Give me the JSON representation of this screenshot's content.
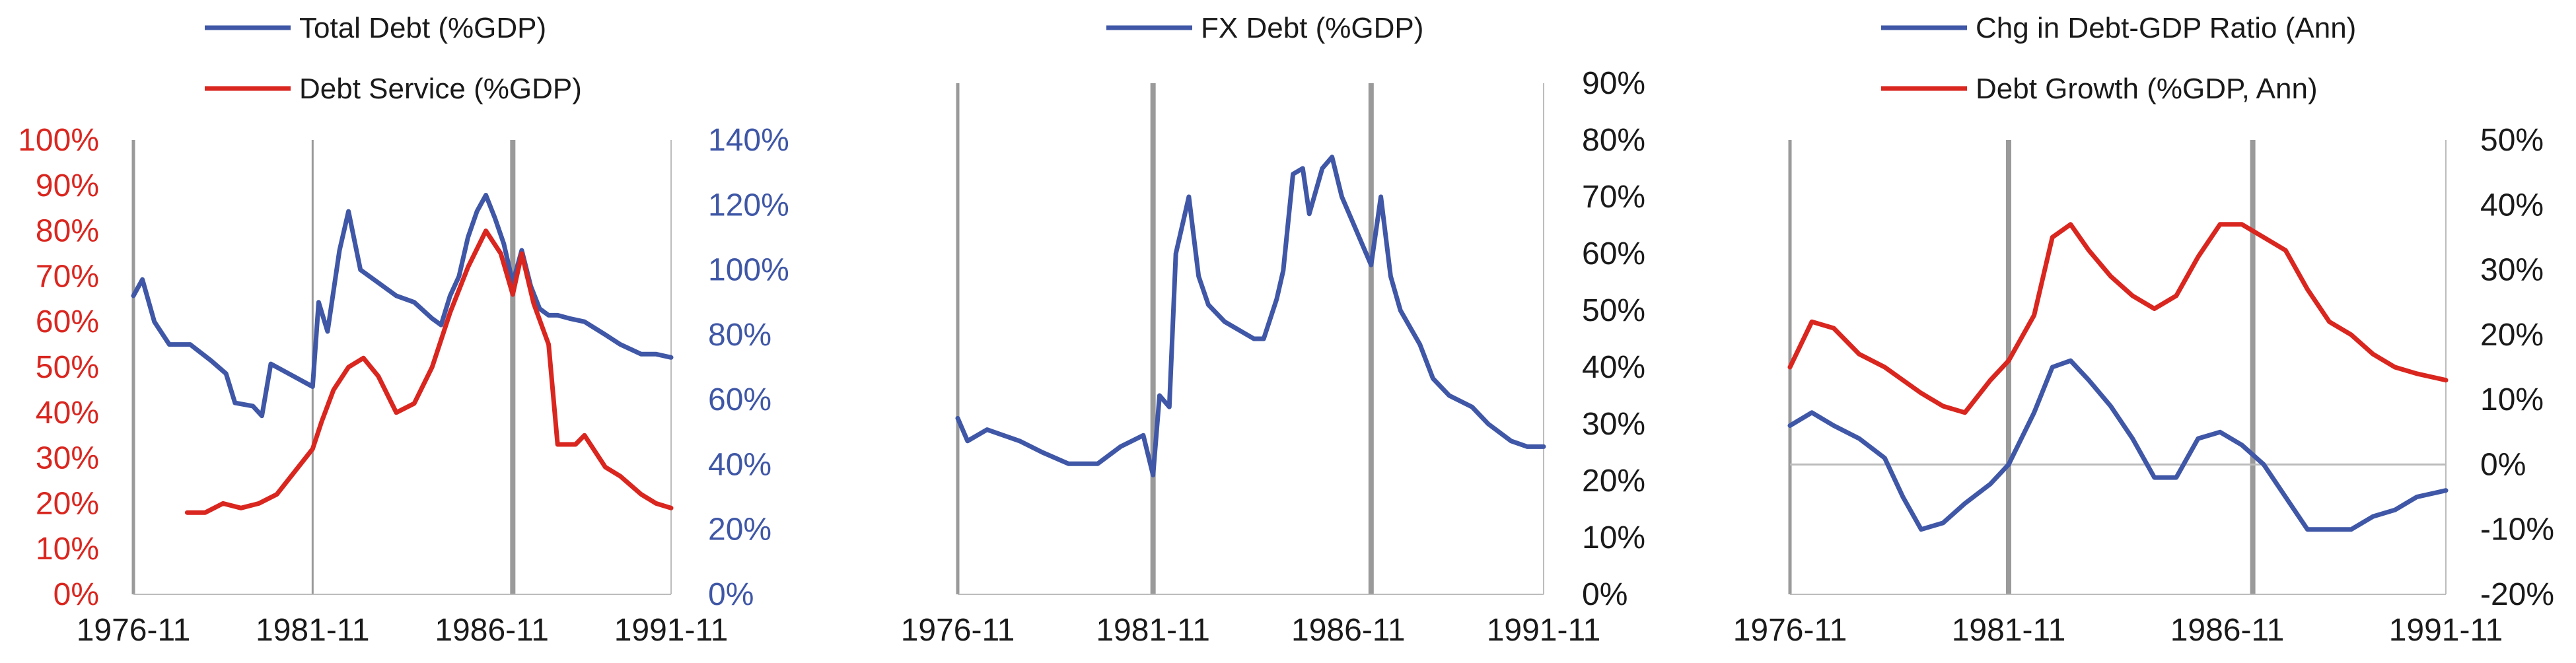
{
  "colors": {
    "blue": "#3f57a6",
    "red": "#d9261f",
    "axis": "#9a9a9a",
    "text": "#1a1a1a"
  },
  "chart_data": [
    {
      "type": "line",
      "legend": [
        "Total Debt (%GDP)",
        "Debt Service (%GDP)"
      ],
      "x_ticks": [
        "1976-11",
        "1981-11",
        "1986-11",
        "1991-11"
      ],
      "xlim": [
        "1976-11",
        "1991-11"
      ],
      "y_left": {
        "ticks": [
          "0%",
          "10%",
          "20%",
          "30%",
          "40%",
          "50%",
          "60%",
          "70%",
          "80%",
          "90%",
          "100%"
        ],
        "lim": [
          0,
          100
        ],
        "color": "red"
      },
      "y_right": {
        "ticks": [
          "0%",
          "20%",
          "40%",
          "60%",
          "80%",
          "100%",
          "120%",
          "140%"
        ],
        "lim": [
          0,
          140
        ],
        "color": "blue"
      },
      "vlines": [
        "1981-11",
        "1987-06"
      ],
      "series": [
        {
          "name": "Total Debt (%GDP)",
          "axis": "right",
          "color": "blue",
          "x": [
            "1976-11",
            "1977-02",
            "1977-06",
            "1977-11",
            "1978-06",
            "1979-01",
            "1979-06",
            "1979-09",
            "1980-03",
            "1980-06",
            "1980-09",
            "1981-03",
            "1981-11",
            "1982-01",
            "1982-04",
            "1982-08",
            "1982-11",
            "1983-03",
            "1983-09",
            "1984-03",
            "1984-09",
            "1985-03",
            "1985-06",
            "1985-09",
            "1985-12",
            "1986-03",
            "1986-06",
            "1986-09",
            "1986-12",
            "1987-03",
            "1987-06",
            "1987-09",
            "1987-12",
            "1988-03",
            "1988-06",
            "1988-09",
            "1989-01",
            "1989-06",
            "1990-01",
            "1990-06",
            "1991-01",
            "1991-06",
            "1991-11"
          ],
          "values": [
            92,
            97,
            84,
            77,
            77,
            72,
            68,
            59,
            58,
            55,
            71,
            68,
            64,
            90,
            81,
            106,
            118,
            100,
            96,
            92,
            90,
            85,
            83,
            92,
            98,
            110,
            118,
            123,
            116,
            108,
            96,
            106,
            95,
            88,
            86,
            86,
            85,
            84,
            80,
            77,
            74,
            74,
            73
          ]
        },
        {
          "name": "Debt Service (%GDP)",
          "axis": "left",
          "color": "red",
          "x": [
            "1978-05",
            "1978-11",
            "1979-05",
            "1979-11",
            "1980-05",
            "1980-11",
            "1981-05",
            "1981-11",
            "1982-02",
            "1982-06",
            "1982-11",
            "1983-04",
            "1983-09",
            "1984-03",
            "1984-09",
            "1985-03",
            "1985-09",
            "1986-03",
            "1986-09",
            "1987-02",
            "1987-06",
            "1987-09",
            "1988-01",
            "1988-06",
            "1988-09",
            "1989-03",
            "1989-06",
            "1990-01",
            "1990-06",
            "1991-01",
            "1991-06",
            "1991-11"
          ],
          "values": [
            18,
            18,
            20,
            19,
            20,
            22,
            27,
            32,
            38,
            45,
            50,
            52,
            48,
            40,
            42,
            50,
            62,
            72,
            80,
            75,
            66,
            75,
            64,
            55,
            33,
            33,
            35,
            28,
            26,
            22,
            20,
            19
          ]
        }
      ]
    },
    {
      "type": "line",
      "legend": [
        "FX Debt (%GDP)"
      ],
      "x_ticks": [
        "1976-11",
        "1981-11",
        "1986-11",
        "1991-11"
      ],
      "xlim": [
        "1976-11",
        "1991-11"
      ],
      "y_right": {
        "ticks": [
          "0%",
          "10%",
          "20%",
          "30%",
          "40%",
          "50%",
          "60%",
          "70%",
          "80%",
          "90%"
        ],
        "lim": [
          0,
          90
        ],
        "color": "blue"
      },
      "vlines": [
        "1981-11",
        "1987-06"
      ],
      "series": [
        {
          "name": "FX Debt (%GDP)",
          "axis": "right",
          "color": "blue",
          "x": [
            "1976-11",
            "1977-02",
            "1977-08",
            "1978-06",
            "1979-01",
            "1979-09",
            "1980-06",
            "1981-01",
            "1981-08",
            "1981-11",
            "1982-01",
            "1982-04",
            "1982-06",
            "1982-10",
            "1983-01",
            "1983-04",
            "1983-09",
            "1984-03",
            "1984-06",
            "1984-09",
            "1985-01",
            "1985-03",
            "1985-06",
            "1985-09",
            "1985-11",
            "1986-03",
            "1986-06",
            "1986-09",
            "1986-12",
            "1987-03",
            "1987-06",
            "1987-09",
            "1987-12",
            "1988-03",
            "1988-09",
            "1989-01",
            "1989-06",
            "1990-01",
            "1990-06",
            "1991-01",
            "1991-06",
            "1991-11"
          ],
          "values": [
            31,
            27,
            29,
            27,
            25,
            23,
            23,
            26,
            28,
            21,
            35,
            33,
            60,
            70,
            56,
            51,
            48,
            46,
            45,
            45,
            52,
            57,
            74,
            75,
            67,
            75,
            77,
            70,
            66,
            62,
            58,
            70,
            56,
            50,
            44,
            38,
            35,
            33,
            30,
            27,
            26,
            26
          ]
        }
      ]
    },
    {
      "type": "line",
      "legend": [
        "Chg in Debt-GDP Ratio (Ann)",
        "Debt Growth (%GDP, Ann)"
      ],
      "x_ticks": [
        "1976-11",
        "1981-11",
        "1986-11",
        "1991-11"
      ],
      "xlim": [
        "1976-11",
        "1991-11"
      ],
      "y_right": {
        "ticks": [
          "-20%",
          "-10%",
          "0%",
          "10%",
          "20%",
          "30%",
          "40%",
          "50%"
        ],
        "lim": [
          -20,
          50
        ],
        "color": "blue"
      },
      "vlines": [
        "1981-11",
        "1987-06"
      ],
      "hline": 0,
      "series": [
        {
          "name": "Chg in Debt-GDP Ratio (Ann)",
          "axis": "right",
          "color": "blue",
          "x": [
            "1976-11",
            "1977-05",
            "1977-11",
            "1978-06",
            "1979-01",
            "1979-06",
            "1979-11",
            "1980-05",
            "1980-11",
            "1981-06",
            "1981-11",
            "1982-06",
            "1982-11",
            "1983-04",
            "1983-09",
            "1984-03",
            "1984-09",
            "1985-03",
            "1985-09",
            "1986-03",
            "1986-09",
            "1987-03",
            "1987-09",
            "1988-03",
            "1988-09",
            "1989-03",
            "1989-09",
            "1990-03",
            "1990-09",
            "1991-03",
            "1991-11"
          ],
          "values": [
            6,
            8,
            6,
            4,
            1,
            -5,
            -10,
            -9,
            -6,
            -3,
            0,
            8,
            15,
            16,
            13,
            9,
            4,
            -2,
            -2,
            4,
            5,
            3,
            0,
            -5,
            -10,
            -10,
            -10,
            -8,
            -7,
            -5,
            -4
          ]
        },
        {
          "name": "Debt Growth (%GDP, Ann)",
          "axis": "right",
          "color": "red",
          "x": [
            "1976-11",
            "1977-05",
            "1977-11",
            "1978-06",
            "1979-01",
            "1979-06",
            "1979-11",
            "1980-05",
            "1980-11",
            "1981-06",
            "1981-11",
            "1982-06",
            "1982-11",
            "1983-04",
            "1983-09",
            "1984-03",
            "1984-09",
            "1985-03",
            "1985-09",
            "1986-03",
            "1986-09",
            "1987-03",
            "1987-09",
            "1988-03",
            "1988-09",
            "1989-03",
            "1989-09",
            "1990-03",
            "1990-09",
            "1991-03",
            "1991-11"
          ],
          "values": [
            15,
            22,
            21,
            17,
            15,
            13,
            11,
            9,
            8,
            13,
            16,
            23,
            35,
            37,
            33,
            29,
            26,
            24,
            26,
            32,
            37,
            37,
            35,
            33,
            27,
            22,
            20,
            17,
            15,
            14,
            13
          ]
        }
      ]
    }
  ]
}
